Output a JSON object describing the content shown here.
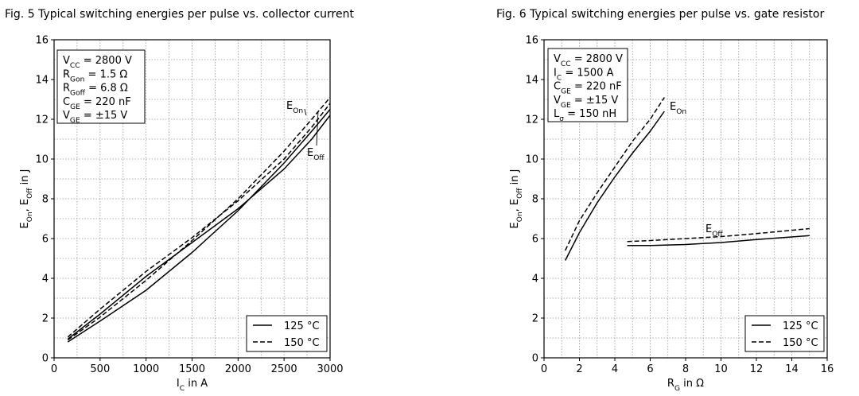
{
  "figures": [
    {
      "title": "Fig. 5  Typical switching energies per pulse vs. collector current",
      "chart_data": {
        "type": "line",
        "xlabel": "I_C in A",
        "ylabel": "E_On, E_Off in J",
        "xlim": [
          0,
          3000
        ],
        "ylim": [
          0,
          16
        ],
        "xticks": [
          0,
          500,
          1000,
          1500,
          2000,
          2500,
          3000
        ],
        "yticks": [
          0,
          2,
          4,
          6,
          8,
          10,
          12,
          14,
          16
        ],
        "grid": "dotted",
        "conditions": [
          "V_CC = 2800 V",
          "R_Gon = 1.5 Ω",
          "R_Goff = 6.8 Ω",
          "C_GE = 220 nF",
          "V_GE = ±15 V"
        ],
        "legend": [
          "125 °C",
          "150 °C"
        ],
        "legend_position": "bottom-right",
        "annotations": [
          "E_On",
          "E_Off"
        ],
        "series": [
          {
            "curve": "E_On",
            "temp": "125 °C",
            "style": "solid",
            "points": [
              [
                150,
                0.8
              ],
              [
                500,
                1.85
              ],
              [
                1000,
                3.4
              ],
              [
                1500,
                5.3
              ],
              [
                2000,
                7.4
              ],
              [
                2500,
                9.8
              ],
              [
                2800,
                11.4
              ],
              [
                3000,
                12.5
              ]
            ]
          },
          {
            "curve": "E_On",
            "temp": "150 °C",
            "style": "dashed",
            "points": [
              [
                150,
                0.9
              ],
              [
                500,
                2.05
              ],
              [
                1000,
                3.9
              ],
              [
                1500,
                5.9
              ],
              [
                2000,
                8.0
              ],
              [
                2500,
                10.4
              ],
              [
                2800,
                12.0
              ],
              [
                3000,
                13.1
              ]
            ]
          },
          {
            "curve": "E_Off",
            "temp": "125 °C",
            "style": "solid",
            "points": [
              [
                150,
                0.95
              ],
              [
                500,
                2.2
              ],
              [
                1000,
                4.1
              ],
              [
                1500,
                5.8
              ],
              [
                2000,
                7.5
              ],
              [
                2500,
                9.5
              ],
              [
                2800,
                11.0
              ],
              [
                3000,
                12.2
              ]
            ]
          },
          {
            "curve": "E_Off",
            "temp": "150 °C",
            "style": "dashed",
            "points": [
              [
                150,
                1.05
              ],
              [
                500,
                2.45
              ],
              [
                1000,
                4.35
              ],
              [
                1500,
                6.05
              ],
              [
                2000,
                7.9
              ],
              [
                2500,
                10.0
              ],
              [
                2800,
                11.6
              ],
              [
                3000,
                12.8
              ]
            ]
          }
        ]
      }
    },
    {
      "title": "Fig. 6  Typical switching energies per pulse vs. gate resistor",
      "chart_data": {
        "type": "line",
        "xlabel": "R_G in Ω",
        "ylabel": "E_On, E_Off in J",
        "xlim": [
          0,
          16
        ],
        "ylim": [
          0,
          16
        ],
        "xticks": [
          0,
          2,
          4,
          6,
          8,
          10,
          12,
          14,
          16
        ],
        "yticks": [
          0,
          2,
          4,
          6,
          8,
          10,
          12,
          14,
          16
        ],
        "grid": "dotted",
        "conditions": [
          "V_CC = 2800 V",
          "I_C = 1500 A",
          "C_GE = 220 nF",
          "V_GE = ±15 V",
          "L_σ = 150 nH"
        ],
        "legend": [
          "125 °C",
          "150 °C"
        ],
        "legend_position": "bottom-right",
        "annotations": [
          "E_On",
          "E_Off"
        ],
        "series": [
          {
            "curve": "E_On",
            "temp": "125 °C",
            "style": "solid",
            "points": [
              [
                1.2,
                4.9
              ],
              [
                2,
                6.3
              ],
              [
                3,
                7.8
              ],
              [
                4,
                9.1
              ],
              [
                5,
                10.3
              ],
              [
                6,
                11.4
              ],
              [
                6.8,
                12.4
              ]
            ]
          },
          {
            "curve": "E_On",
            "temp": "150 °C",
            "style": "dashed",
            "points": [
              [
                1.2,
                5.4
              ],
              [
                2,
                6.9
              ],
              [
                3,
                8.3
              ],
              [
                4,
                9.6
              ],
              [
                5,
                10.9
              ],
              [
                6,
                12.0
              ],
              [
                6.8,
                13.1
              ]
            ]
          },
          {
            "curve": "E_Off",
            "temp": "125 °C",
            "style": "solid",
            "points": [
              [
                4.7,
                5.65
              ],
              [
                6,
                5.65
              ],
              [
                8,
                5.7
              ],
              [
                10,
                5.8
              ],
              [
                12,
                5.95
              ],
              [
                15,
                6.15
              ]
            ]
          },
          {
            "curve": "E_Off",
            "temp": "150 °C",
            "style": "dashed",
            "points": [
              [
                4.7,
                5.85
              ],
              [
                6,
                5.9
              ],
              [
                8,
                6.0
              ],
              [
                10,
                6.1
              ],
              [
                12,
                6.25
              ],
              [
                15,
                6.5
              ]
            ]
          }
        ]
      }
    }
  ]
}
